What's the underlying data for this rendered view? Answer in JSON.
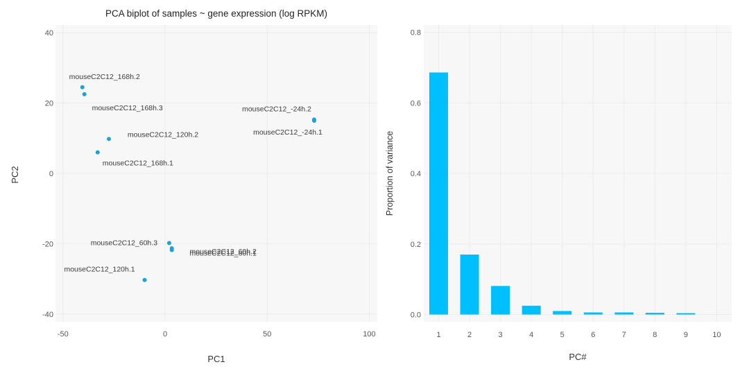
{
  "charts": [
    {
      "type": "scatter",
      "title": "PCA biplot of samples ~ gene expression (log RPKM)",
      "xlabel": "PC1",
      "ylabel": "PC2",
      "xlim": [
        -50,
        100
      ],
      "ylim": [
        -40,
        40
      ],
      "x_ticks": [
        -50,
        0,
        50,
        100
      ],
      "y_ticks": [
        -40,
        -20,
        0,
        20,
        40
      ],
      "grid": true,
      "point_color": "#1ba3d6",
      "label_color": "#3a3a3a",
      "points": [
        {
          "label": "mouseC2C12_168h.2",
          "x": -40.5,
          "y": 24.5
        },
        {
          "label": "mouseC2C12_168h.3",
          "x": -39.5,
          "y": 22.5
        },
        {
          "label": "mouseC2C12_120h.2",
          "x": -27.5,
          "y": 9.8
        },
        {
          "label": "mouseC2C12_168h.1",
          "x": -33.0,
          "y": 6.0
        },
        {
          "label": "mouseC2C12_-24h.2",
          "x": 73.0,
          "y": 15.3
        },
        {
          "label": "mouseC2C12_-24h.1",
          "x": 73.0,
          "y": 15.0
        },
        {
          "label": "mouseC2C12_60h.3",
          "x": 2.0,
          "y": -19.8
        },
        {
          "label": "mouseC2C12_60h.2",
          "x": 3.3,
          "y": -21.3
        },
        {
          "label": "mouseC2C12_60h.1",
          "x": 3.3,
          "y": -21.8
        },
        {
          "label": "mouseC2C12_120h.1",
          "x": -10.0,
          "y": -30.3
        }
      ]
    },
    {
      "type": "bar",
      "title": "",
      "xlabel": "PC#",
      "ylabel": "Proportion of variance",
      "ylim": [
        0,
        0.8
      ],
      "y_ticks": [
        "0.0",
        "0.2",
        "0.4",
        "0.6",
        "0.8"
      ],
      "categories": [
        "1",
        "2",
        "3",
        "4",
        "5",
        "6",
        "7",
        "8",
        "9",
        "10"
      ],
      "values": [
        0.686,
        0.17,
        0.081,
        0.025,
        0.01,
        0.006,
        0.006,
        0.005,
        0.004,
        0.0
      ],
      "grid": true,
      "bar_color": "#00bfff"
    }
  ]
}
